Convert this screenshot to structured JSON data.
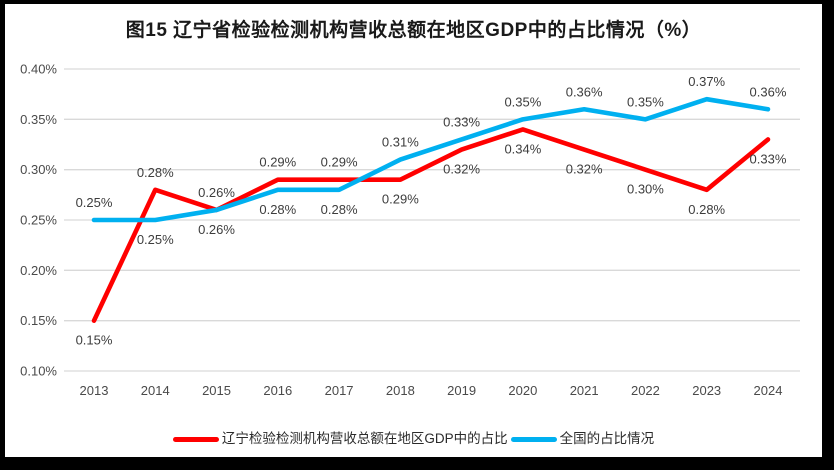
{
  "title": "图15 辽宁省检验检测机构营收总额在地区GDP中的占比情况（%）",
  "legend": {
    "items": [
      {
        "label": "辽宁检验检测机构营收总额在地区GDP中的占比"
      },
      {
        "label": "全国的占比情况"
      }
    ]
  },
  "chart_data": {
    "type": "line",
    "title": "图15 辽宁省检验检测机构营收总额在地区GDP中的占比情况（%）",
    "categories": [
      "2013",
      "2014",
      "2015",
      "2016",
      "2017",
      "2018",
      "2019",
      "2020",
      "2021",
      "2022",
      "2023",
      "2024"
    ],
    "series": [
      {
        "name": "辽宁检验检测机构营收总额在地区GDP中的占比",
        "color": "#FF0000",
        "values": [
          0.15,
          0.28,
          0.26,
          0.29,
          0.29,
          0.29,
          0.32,
          0.34,
          0.32,
          0.3,
          0.28,
          0.33
        ],
        "labels": [
          "0.15%",
          "0.28%",
          "0.26%",
          "0.29%",
          "0.29%",
          "0.29%",
          "0.32%",
          "0.34%",
          "0.32%",
          "0.30%",
          "0.28%",
          "0.33%"
        ],
        "label_positions": [
          "below",
          "above",
          "above",
          "above",
          "above",
          "below",
          "below",
          "below",
          "below",
          "below",
          "below",
          "below"
        ]
      },
      {
        "name": "全国的占比情况",
        "color": "#00B0F0",
        "values": [
          0.25,
          0.25,
          0.26,
          0.28,
          0.28,
          0.31,
          0.33,
          0.35,
          0.36,
          0.35,
          0.37,
          0.36
        ],
        "labels": [
          "0.25%",
          "0.25%",
          "0.26%",
          "0.28%",
          "0.28%",
          "0.31%",
          "0.33%",
          "0.35%",
          "0.36%",
          "0.35%",
          "0.37%",
          "0.36%"
        ],
        "label_positions": [
          "above",
          "below",
          "below",
          "below",
          "below",
          "above",
          "above",
          "above",
          "above",
          "above",
          "above",
          "above"
        ]
      }
    ],
    "xlabel": "",
    "ylabel": "",
    "ylim": [
      0.1,
      0.4
    ],
    "y_ticks": [
      "0.40%",
      "0.35%",
      "0.30%",
      "0.25%",
      "0.20%",
      "0.15%",
      "0.10%"
    ],
    "grid": true,
    "legend_position": "bottom",
    "colors": {
      "gridline": "#D9D9D9",
      "axis_text": "#4a4a4a",
      "data_label": "#3d3d3d",
      "title_text": "#1a1a1a"
    }
  }
}
